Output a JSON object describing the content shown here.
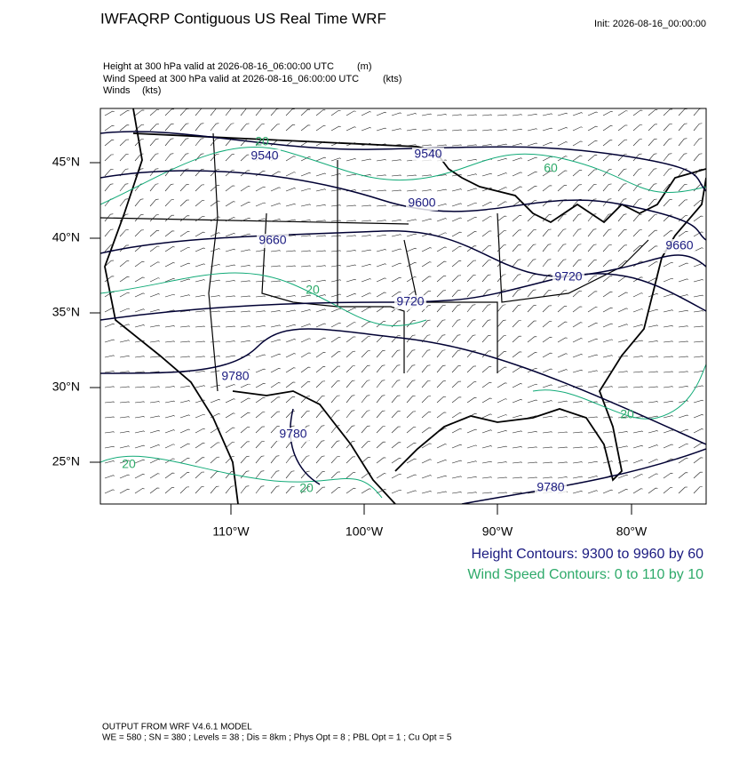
{
  "header": {
    "title": "IWFAQRP Contiguous US Real Time WRF",
    "init": "Init: 2026-08-16_00:00:00"
  },
  "fields": [
    {
      "name": "Height at 300 hPa valid at 2026-08-16_06:00:00 UTC",
      "units": "(m)"
    },
    {
      "name": "Wind Speed at 300 hPa valid at 2026-08-16_06:00:00 UTC",
      "units": "(kts)"
    },
    {
      "name": "Winds",
      "units": "(kts)"
    }
  ],
  "map": {
    "lat_labels": [
      "45°N",
      "40°N",
      "35°N",
      "30°N",
      "25°N"
    ],
    "lon_labels": [
      "110°W",
      "100°W",
      "90°W",
      "80°W"
    ],
    "height_contour_labels": [
      "9540",
      "9540",
      "9600",
      "9660",
      "9660",
      "9720",
      "9720",
      "9780",
      "9780",
      "9780"
    ],
    "wind_contour_labels": [
      "20",
      "60",
      "20",
      "20",
      "20",
      "20"
    ]
  },
  "legend": {
    "height": "Height Contours: 9300 to 9960 by 60",
    "wind": "Wind Speed Contours: 0 to 110 by 10"
  },
  "footer": {
    "model": "OUTPUT FROM WRF V4.6.1 MODEL",
    "settings": "WE = 580 ; SN = 380 ; Levels = 38 ; Dis = 8km ; Phys Opt = 8 ; PBL Opt = 1 ; Cu Opt = 5"
  }
}
